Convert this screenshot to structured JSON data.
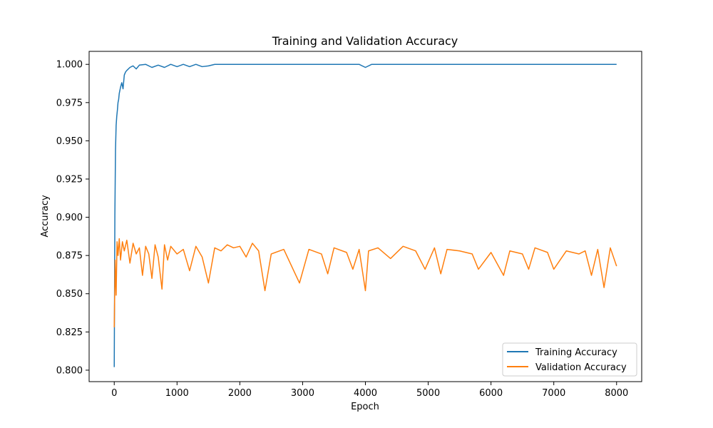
{
  "chart_data": {
    "type": "line",
    "title": "Training and Validation Accuracy",
    "xlabel": "Epoch",
    "ylabel": "Accuracy",
    "xlim": [
      -400,
      8400
    ],
    "ylim": [
      0.7925,
      1.0085
    ],
    "x_ticks": [
      0,
      1000,
      2000,
      3000,
      4000,
      5000,
      6000,
      7000,
      8000
    ],
    "y_ticks": [
      0.8,
      0.825,
      0.85,
      0.875,
      0.9,
      0.925,
      0.95,
      0.975,
      1.0
    ],
    "y_tick_labels": [
      "0.800",
      "0.825",
      "0.850",
      "0.875",
      "0.900",
      "0.925",
      "0.950",
      "0.975",
      "1.000"
    ],
    "grid": false,
    "legend_position": "bottom-right",
    "series": [
      {
        "name": "Training Accuracy",
        "color": "#1f77b4",
        "x": [
          0,
          10,
          20,
          30,
          40,
          50,
          60,
          70,
          80,
          100,
          120,
          140,
          160,
          180,
          200,
          250,
          300,
          350,
          400,
          500,
          600,
          700,
          800,
          900,
          1000,
          1100,
          1200,
          1300,
          1400,
          1500,
          1600,
          1800,
          2000,
          2500,
          3000,
          3500,
          3900,
          4000,
          4100,
          4500,
          5000,
          5500,
          6000,
          6500,
          7000,
          7500,
          8000
        ],
        "values": [
          0.802,
          0.901,
          0.944,
          0.96,
          0.966,
          0.97,
          0.975,
          0.977,
          0.981,
          0.985,
          0.988,
          0.984,
          0.993,
          0.995,
          0.996,
          0.998,
          0.999,
          0.997,
          0.9995,
          1.0,
          0.998,
          0.9995,
          0.998,
          1.0,
          0.9985,
          1.0,
          0.9985,
          1.0,
          0.9985,
          0.999,
          1.0,
          1.0,
          1.0,
          1.0,
          1.0,
          1.0,
          1.0,
          0.998,
          1.0,
          1.0,
          1.0,
          1.0,
          1.0,
          1.0,
          1.0,
          1.0,
          1.0
        ]
      },
      {
        "name": "Validation Accuracy",
        "color": "#ff7f0e",
        "x": [
          0,
          15,
          30,
          45,
          60,
          80,
          100,
          130,
          160,
          200,
          250,
          300,
          350,
          400,
          450,
          500,
          550,
          600,
          650,
          700,
          760,
          800,
          850,
          900,
          1000,
          1100,
          1200,
          1300,
          1400,
          1500,
          1600,
          1700,
          1800,
          1900,
          2000,
          2100,
          2200,
          2300,
          2400,
          2500,
          2700,
          2950,
          3100,
          3300,
          3400,
          3500,
          3700,
          3800,
          3900,
          4000,
          4050,
          4200,
          4400,
          4600,
          4800,
          4950,
          5100,
          5200,
          5300,
          5500,
          5700,
          5800,
          6000,
          6200,
          6300,
          6500,
          6600,
          6700,
          6900,
          7000,
          7200,
          7400,
          7500,
          7600,
          7700,
          7800,
          7900,
          8000
        ],
        "values": [
          0.828,
          0.872,
          0.849,
          0.884,
          0.875,
          0.886,
          0.872,
          0.884,
          0.878,
          0.885,
          0.87,
          0.883,
          0.876,
          0.88,
          0.862,
          0.881,
          0.876,
          0.86,
          0.882,
          0.874,
          0.853,
          0.882,
          0.872,
          0.881,
          0.876,
          0.879,
          0.865,
          0.881,
          0.874,
          0.857,
          0.88,
          0.878,
          0.882,
          0.88,
          0.881,
          0.874,
          0.883,
          0.878,
          0.852,
          0.876,
          0.879,
          0.857,
          0.879,
          0.876,
          0.863,
          0.88,
          0.877,
          0.866,
          0.879,
          0.852,
          0.878,
          0.88,
          0.873,
          0.881,
          0.878,
          0.866,
          0.88,
          0.863,
          0.879,
          0.878,
          0.876,
          0.866,
          0.877,
          0.862,
          0.878,
          0.876,
          0.866,
          0.88,
          0.877,
          0.866,
          0.878,
          0.876,
          0.878,
          0.862,
          0.879,
          0.854,
          0.88,
          0.868
        ]
      }
    ]
  }
}
